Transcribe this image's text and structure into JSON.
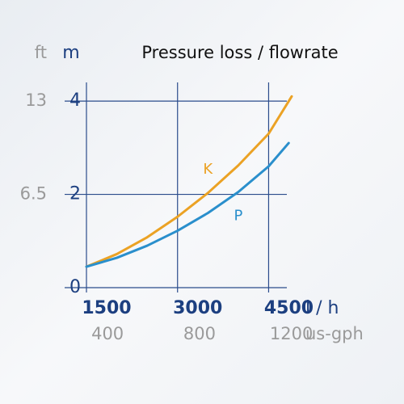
{
  "chart_data": {
    "type": "line",
    "title": "Pressure loss / flowrate",
    "y_label": "m",
    "y2_label": "ft",
    "x_label": "l / h",
    "x2_label": "us-gph",
    "xlim": [
      1500,
      4800
    ],
    "xticks": [
      1500,
      3000,
      4500
    ],
    "x2lim": [
      396,
      1268
    ],
    "x2ticks": [
      400,
      800,
      1200
    ],
    "ylim": [
      0,
      4.4
    ],
    "yticks": [
      0,
      2,
      4
    ],
    "y2lim": [
      0,
      14.3
    ],
    "y2ticks": [
      6.5,
      13
    ],
    "grid": true,
    "series": [
      {
        "name": "K",
        "color": "#eba224",
        "x": [
          1500,
          2000,
          2500,
          3000,
          3500,
          4000,
          4500,
          4880
        ],
        "values": [
          0.45,
          0.72,
          1.08,
          1.52,
          2.03,
          2.62,
          3.3,
          4.1
        ]
      },
      {
        "name": "P",
        "color": "#2a8fcc",
        "x": [
          1500,
          2000,
          2500,
          3000,
          3500,
          4000,
          4500,
          4830
        ],
        "values": [
          0.45,
          0.64,
          0.9,
          1.22,
          1.6,
          2.05,
          2.6,
          3.1
        ]
      }
    ]
  }
}
